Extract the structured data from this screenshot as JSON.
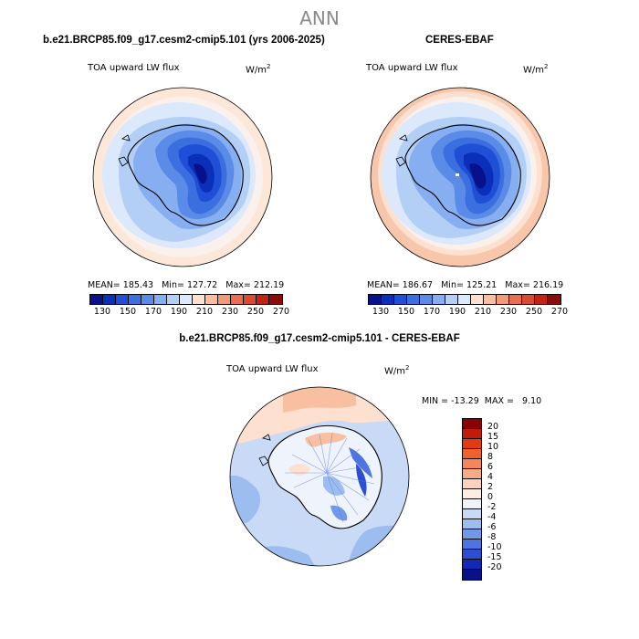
{
  "figure": {
    "title": "ANN"
  },
  "panel_left": {
    "title": "b.e21.BRCP85.f09_g17.cesm2-cmip5.101 (yrs 2006-2025)",
    "variable": "TOA upward LW flux",
    "units": "W/m",
    "units_exp": "2",
    "mean_label": "MEAN=",
    "mean": "185.43",
    "min_label": "Min=",
    "min": "127.72",
    "max_label": "Max=",
    "max": "212.19"
  },
  "panel_right": {
    "title": "CERES-EBAF",
    "variable": "TOA upward LW flux",
    "units": "W/m",
    "units_exp": "2",
    "mean_label": "MEAN=",
    "mean": "186.67",
    "min_label": "Min=",
    "min": "125.21",
    "max_label": "Max=",
    "max": "216.19"
  },
  "panel_diff": {
    "title": "b.e21.BRCP85.f09_g17.cesm2-cmip5.101 - CERES-EBAF",
    "variable": "TOA upward LW flux",
    "units": "W/m",
    "units_exp": "2",
    "min_label": "MIN =",
    "min": "-13.29",
    "max_label": "MAX =",
    "max": "9.10"
  },
  "colorbar_abs": {
    "ticks": [
      "130",
      "150",
      "170",
      "190",
      "210",
      "230",
      "250",
      "270"
    ],
    "colors": [
      "#08108a",
      "#0a2fb8",
      "#1f4fd6",
      "#3b6fe0",
      "#5a8be6",
      "#86aef0",
      "#b4cff6",
      "#dce8fb",
      "#fde0cf",
      "#f8bfa1",
      "#f19b77",
      "#e8704f",
      "#d94a2e",
      "#c22414",
      "#8b0a0a"
    ]
  },
  "colorbar_diff": {
    "ticks": [
      "20",
      "15",
      "10",
      "8",
      "6",
      "4",
      "2",
      "0",
      "-2",
      "-4",
      "-6",
      "-8",
      "-10",
      "-15",
      "-20"
    ],
    "colors": [
      "#8b0000",
      "#c41a0a",
      "#e33a12",
      "#f0612e",
      "#f5865a",
      "#f7ab88",
      "#fbd2bd",
      "#fdeee4",
      "#eef3fc",
      "#c9daf7",
      "#9dbdf1",
      "#7099e9",
      "#4d74df",
      "#2b4fd1",
      "#1329b5",
      "#08108a"
    ]
  }
}
